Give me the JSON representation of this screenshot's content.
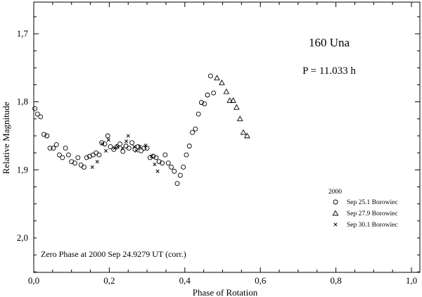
{
  "chart_data": {
    "type": "scatter",
    "title": "160 Una",
    "subtitle": "P = 11.033 h",
    "xlabel": "Phase of Rotation",
    "ylabel": "Relative Magnitude",
    "note": "Zero Phase at 2000 Sep 24.9279 UT (corr.)",
    "xlim": [
      0.0,
      1.0
    ],
    "ylim": [
      1.65,
      2.05
    ],
    "y_inverted": true,
    "x_ticks": [
      0.0,
      0.2,
      0.4,
      0.6,
      0.8,
      1.0
    ],
    "x_tick_labels": [
      "0,0",
      "0,2",
      "0,4",
      "0,6",
      "0,8",
      "1,0"
    ],
    "y_ticks": [
      1.7,
      1.8,
      1.9,
      2.0
    ],
    "y_tick_labels": [
      "1,7",
      "1,8",
      "1,9",
      "2,0"
    ],
    "grid": false,
    "legend_title": "2000",
    "legend_position": "right",
    "series": [
      {
        "name": "Sep 25.1 Borowiec",
        "marker": "circle",
        "points": [
          [
            0.003,
            1.81
          ],
          [
            0.01,
            1.818
          ],
          [
            0.018,
            1.822
          ],
          [
            0.027,
            1.848
          ],
          [
            0.035,
            1.85
          ],
          [
            0.043,
            1.868
          ],
          [
            0.052,
            1.868
          ],
          [
            0.06,
            1.863
          ],
          [
            0.068,
            1.878
          ],
          [
            0.076,
            1.882
          ],
          [
            0.084,
            1.868
          ],
          [
            0.092,
            1.878
          ],
          [
            0.1,
            1.888
          ],
          [
            0.109,
            1.89
          ],
          [
            0.117,
            1.882
          ],
          [
            0.125,
            1.893
          ],
          [
            0.133,
            1.896
          ],
          [
            0.14,
            1.882
          ],
          [
            0.148,
            1.88
          ],
          [
            0.157,
            1.878
          ],
          [
            0.165,
            1.875
          ],
          [
            0.173,
            1.878
          ],
          [
            0.18,
            1.86
          ],
          [
            0.188,
            1.862
          ],
          [
            0.196,
            1.85
          ],
          [
            0.203,
            1.866
          ],
          [
            0.212,
            1.87
          ],
          [
            0.22,
            1.866
          ],
          [
            0.228,
            1.862
          ],
          [
            0.236,
            1.873
          ],
          [
            0.244,
            1.865
          ],
          [
            0.252,
            1.868
          ],
          [
            0.26,
            1.86
          ],
          [
            0.268,
            1.87
          ],
          [
            0.276,
            1.866
          ],
          [
            0.284,
            1.872
          ],
          [
            0.292,
            1.868
          ],
          [
            0.3,
            1.868
          ],
          [
            0.308,
            1.882
          ],
          [
            0.316,
            1.88
          ],
          [
            0.324,
            1.882
          ],
          [
            0.332,
            1.888
          ],
          [
            0.34,
            1.89
          ],
          [
            0.348,
            1.878
          ],
          [
            0.356,
            1.89
          ],
          [
            0.364,
            1.896
          ],
          [
            0.372,
            1.902
          ],
          [
            0.38,
            1.92
          ],
          [
            0.388,
            1.908
          ],
          [
            0.396,
            1.896
          ],
          [
            0.404,
            1.878
          ],
          [
            0.412,
            1.865
          ],
          [
            0.42,
            1.845
          ],
          [
            0.428,
            1.84
          ],
          [
            0.436,
            1.818
          ],
          [
            0.444,
            1.801
          ],
          [
            0.452,
            1.803
          ],
          [
            0.46,
            1.79
          ],
          [
            0.468,
            1.762
          ],
          [
            0.476,
            1.787
          ]
        ]
      },
      {
        "name": "Sep 27.9 Borowiec",
        "marker": "triangle",
        "points": [
          [
            0.485,
            1.765
          ],
          [
            0.498,
            1.772
          ],
          [
            0.51,
            1.785
          ],
          [
            0.519,
            1.798
          ],
          [
            0.528,
            1.798
          ],
          [
            0.537,
            1.808
          ],
          [
            0.546,
            1.825
          ],
          [
            0.555,
            1.845
          ],
          [
            0.565,
            1.85
          ]
        ]
      },
      {
        "name": "Sep 30.1 Borowiec",
        "marker": "cross",
        "points": [
          [
            0.155,
            1.896
          ],
          [
            0.168,
            1.888
          ],
          [
            0.182,
            1.862
          ],
          [
            0.191,
            1.872
          ],
          [
            0.198,
            1.856
          ],
          [
            0.214,
            1.868
          ],
          [
            0.222,
            1.866
          ],
          [
            0.235,
            1.868
          ],
          [
            0.245,
            1.858
          ],
          [
            0.25,
            1.85
          ],
          [
            0.266,
            1.866
          ],
          [
            0.272,
            1.872
          ],
          [
            0.281,
            1.866
          ],
          [
            0.296,
            1.864
          ],
          [
            0.312,
            1.88
          ],
          [
            0.32,
            1.892
          ],
          [
            0.328,
            1.902
          ]
        ]
      }
    ]
  }
}
